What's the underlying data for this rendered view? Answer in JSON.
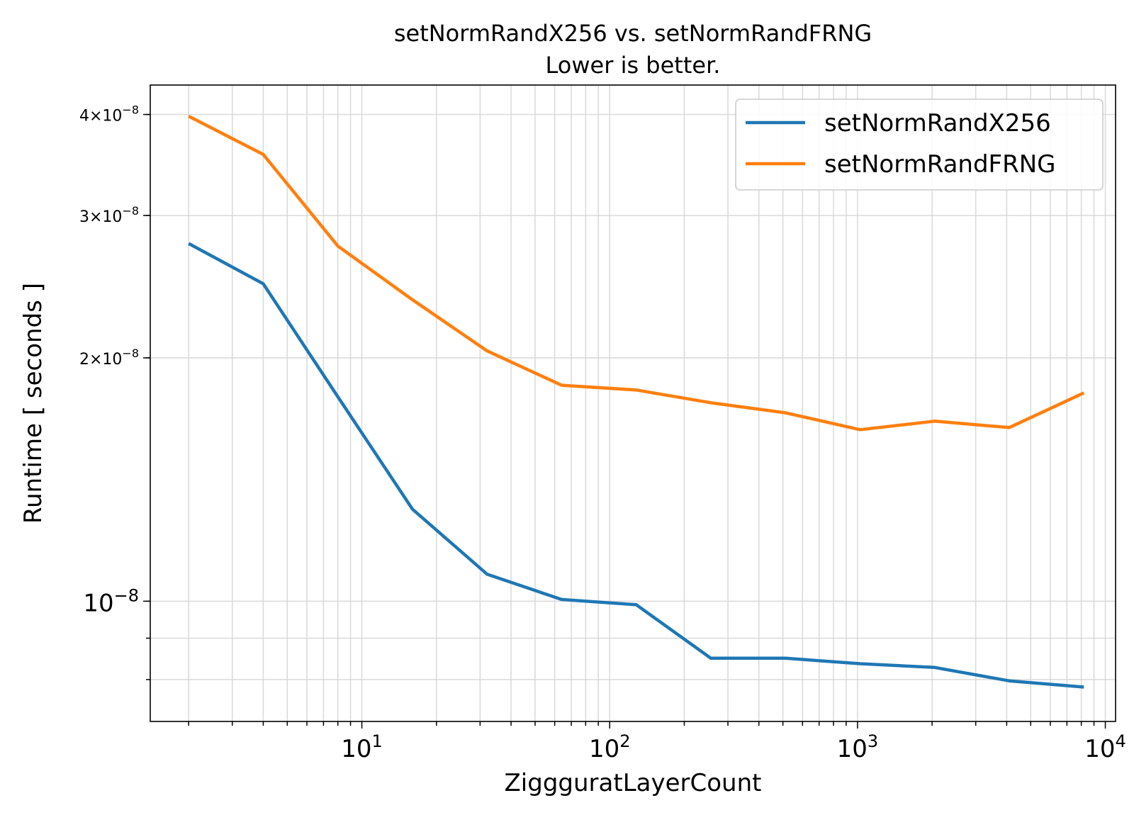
{
  "chart_data": {
    "type": "line",
    "title": "setNormRandX256 vs. setNormRandFRNG",
    "subtitle": "Lower is better.",
    "xlabel": "ZiggguratLayerCount",
    "ylabel": "Runtime [ seconds ]",
    "xscale": "log",
    "yscale": "log",
    "xlim": [
      1.4,
      11000
    ],
    "ylim": [
      7.1e-09,
      4.35e-08
    ],
    "grid": true,
    "legend_position": "top-right",
    "x": [
      2,
      4,
      8,
      16,
      32,
      64,
      128,
      256,
      512,
      1024,
      2048,
      4096,
      8192
    ],
    "series": [
      {
        "name": "setNormRandX256",
        "color": "#1f77b4",
        "values": [
          2.77e-08,
          2.47e-08,
          1.79e-08,
          1.3e-08,
          1.08e-08,
          1.005e-08,
          9.9e-09,
          8.5e-09,
          8.5e-09,
          8.37e-09,
          8.28e-09,
          7.97e-09,
          7.83e-09
        ]
      },
      {
        "name": "setNormRandFRNG",
        "color": "#ff7f0e",
        "values": [
          3.98e-08,
          3.57e-08,
          2.75e-08,
          2.36e-08,
          2.04e-08,
          1.85e-08,
          1.825e-08,
          1.76e-08,
          1.71e-08,
          1.63e-08,
          1.67e-08,
          1.64e-08,
          1.81e-08
        ]
      }
    ],
    "xticks": [
      {
        "value": 10,
        "base": "10",
        "exp": "1"
      },
      {
        "value": 100,
        "base": "10",
        "exp": "2"
      },
      {
        "value": 1000,
        "base": "10",
        "exp": "3"
      },
      {
        "value": 10000,
        "base": "10",
        "exp": "4"
      }
    ],
    "yticks": [
      {
        "value": 1e-08,
        "mant": "",
        "base": "10",
        "exp": "−8",
        "style": "major"
      },
      {
        "value": 2e-08,
        "mant": "2×",
        "base": "10",
        "exp": "−8",
        "style": "minor"
      },
      {
        "value": 3e-08,
        "mant": "3×",
        "base": "10",
        "exp": "−8",
        "style": "minor"
      },
      {
        "value": 4e-08,
        "mant": "4×",
        "base": "10",
        "exp": "−8",
        "style": "minor"
      }
    ]
  }
}
